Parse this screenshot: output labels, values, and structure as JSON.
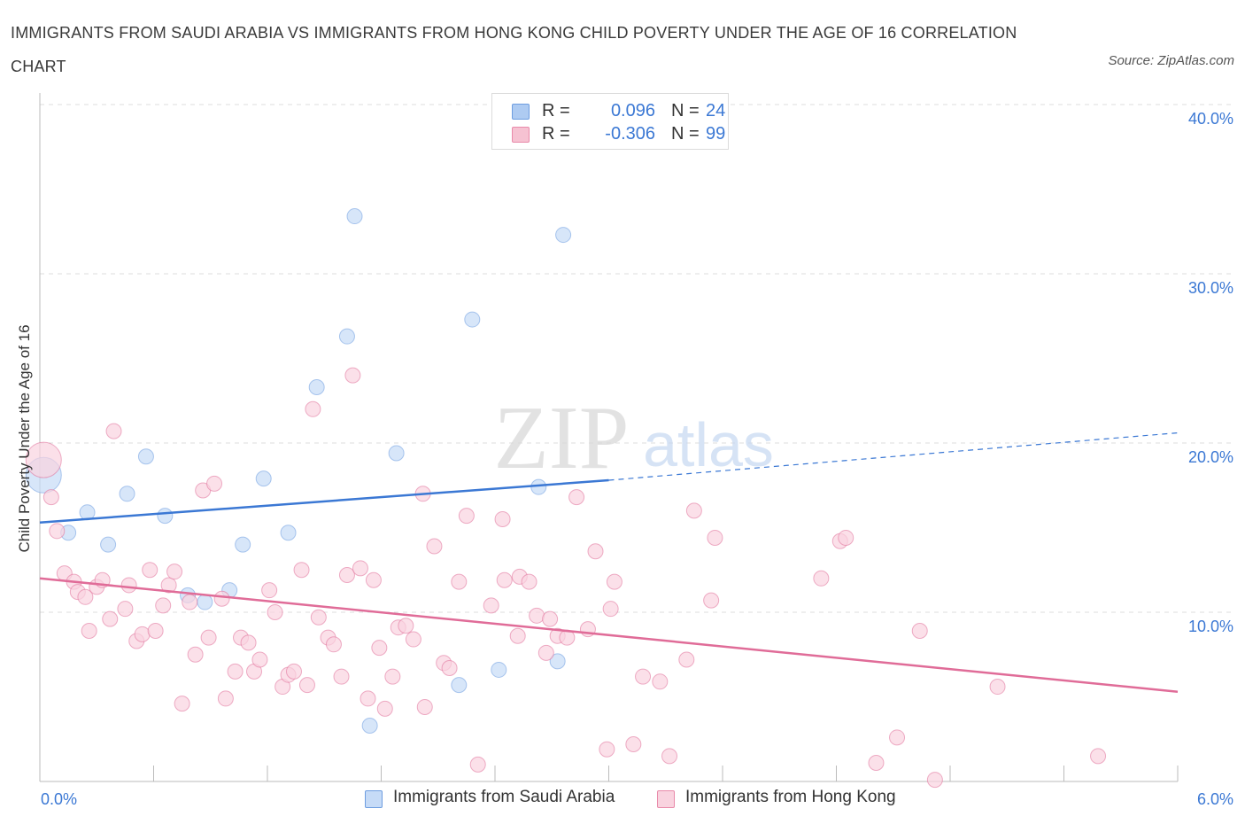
{
  "header": {
    "title": "IMMIGRANTS FROM SAUDI ARABIA VS IMMIGRANTS FROM HONG KONG CHILD POVERTY UNDER THE AGE OF 16 CORRELATION CHART",
    "source": "Source: ZipAtlas.com"
  },
  "watermark": {
    "zip": "ZIP",
    "atlas": "atlas"
  },
  "legend_top": {
    "rows": [
      {
        "r_label": "R =",
        "r_value": "0.096",
        "n_label": "N =",
        "n_value": "24",
        "color": "#aecbf2",
        "border": "#6d9de0"
      },
      {
        "r_label": "R =",
        "r_value": "-0.306",
        "n_label": "N =",
        "n_value": "99",
        "color": "#f6c2d2",
        "border": "#e98aaa"
      }
    ]
  },
  "legend_bottom": [
    {
      "label": "Immigrants from Saudi Arabia",
      "color": "#c6dbf7",
      "border": "#6d9de0"
    },
    {
      "label": "Immigrants from Hong Kong",
      "color": "#f9d3df",
      "border": "#e98aaa"
    }
  ],
  "chart_data": {
    "type": "scatter",
    "title": "IMMIGRANTS FROM SAUDI ARABIA VS IMMIGRANTS FROM HONG KONG CHILD POVERTY UNDER THE AGE OF 16 CORRELATION CHART",
    "xlabel": "",
    "ylabel": "Child Poverty Under the Age of 16",
    "xlim": [
      0,
      6
    ],
    "ylim": [
      0,
      40
    ],
    "x_tick_labels": [
      "0.0%",
      "6.0%"
    ],
    "y_tick_labels": [
      "10.0%",
      "20.0%",
      "30.0%",
      "40.0%"
    ],
    "y_ticks": [
      10,
      20,
      30,
      40
    ],
    "grid": "horizontal dashed",
    "legend": "bottom-center",
    "series": [
      {
        "name": "Immigrants from Saudi Arabia",
        "color": "#6d9de0",
        "fill": "#c6dbf7",
        "R": 0.096,
        "N": 24,
        "trend": {
          "x": [
            0,
            3.0
          ],
          "y": [
            15.3,
            17.8
          ],
          "extended_to": [
            6.0,
            20.6
          ]
        },
        "points": [
          {
            "x": 0.02,
            "y": 18.1,
            "big": true
          },
          {
            "x": 0.15,
            "y": 14.7
          },
          {
            "x": 0.25,
            "y": 15.9
          },
          {
            "x": 0.36,
            "y": 14.0
          },
          {
            "x": 0.46,
            "y": 17.0
          },
          {
            "x": 0.56,
            "y": 19.2
          },
          {
            "x": 0.66,
            "y": 15.7
          },
          {
            "x": 0.78,
            "y": 11.0
          },
          {
            "x": 0.87,
            "y": 10.6
          },
          {
            "x": 1.0,
            "y": 11.3
          },
          {
            "x": 1.07,
            "y": 14.0
          },
          {
            "x": 1.18,
            "y": 17.9
          },
          {
            "x": 1.31,
            "y": 14.7
          },
          {
            "x": 1.46,
            "y": 23.3
          },
          {
            "x": 1.62,
            "y": 26.3
          },
          {
            "x": 1.66,
            "y": 33.4
          },
          {
            "x": 1.74,
            "y": 3.3
          },
          {
            "x": 1.88,
            "y": 19.4
          },
          {
            "x": 2.21,
            "y": 5.7
          },
          {
            "x": 2.28,
            "y": 27.3
          },
          {
            "x": 2.42,
            "y": 6.6
          },
          {
            "x": 2.63,
            "y": 17.4
          },
          {
            "x": 2.73,
            "y": 7.1
          },
          {
            "x": 2.76,
            "y": 32.3
          }
        ]
      },
      {
        "name": "Immigrants from Hong Kong",
        "color": "#e07099",
        "fill": "#f9d3df",
        "R": -0.306,
        "N": 99,
        "trend": {
          "x": [
            0,
            6.0
          ],
          "y": [
            12.0,
            5.3
          ]
        },
        "points": [
          {
            "x": 0.02,
            "y": 19.0,
            "big": true
          },
          {
            "x": 0.06,
            "y": 16.8
          },
          {
            "x": 0.09,
            "y": 14.8
          },
          {
            "x": 0.13,
            "y": 12.3
          },
          {
            "x": 0.18,
            "y": 11.8
          },
          {
            "x": 0.2,
            "y": 11.2
          },
          {
            "x": 0.24,
            "y": 10.9
          },
          {
            "x": 0.26,
            "y": 8.9
          },
          {
            "x": 0.3,
            "y": 11.5
          },
          {
            "x": 0.33,
            "y": 11.9
          },
          {
            "x": 0.37,
            "y": 9.6
          },
          {
            "x": 0.39,
            "y": 20.7
          },
          {
            "x": 0.45,
            "y": 10.2
          },
          {
            "x": 0.47,
            "y": 11.6
          },
          {
            "x": 0.51,
            "y": 8.3
          },
          {
            "x": 0.54,
            "y": 8.7
          },
          {
            "x": 0.58,
            "y": 12.5
          },
          {
            "x": 0.61,
            "y": 8.9
          },
          {
            "x": 0.65,
            "y": 10.4
          },
          {
            "x": 0.68,
            "y": 11.6
          },
          {
            "x": 0.71,
            "y": 12.4
          },
          {
            "x": 0.75,
            "y": 4.6
          },
          {
            "x": 0.79,
            "y": 10.6
          },
          {
            "x": 0.82,
            "y": 7.5
          },
          {
            "x": 0.86,
            "y": 17.2
          },
          {
            "x": 0.89,
            "y": 8.5
          },
          {
            "x": 0.92,
            "y": 17.6
          },
          {
            "x": 0.96,
            "y": 10.8
          },
          {
            "x": 0.98,
            "y": 4.9
          },
          {
            "x": 1.03,
            "y": 6.5
          },
          {
            "x": 1.06,
            "y": 8.5
          },
          {
            "x": 1.1,
            "y": 8.2
          },
          {
            "x": 1.13,
            "y": 6.5
          },
          {
            "x": 1.16,
            "y": 7.2
          },
          {
            "x": 1.21,
            "y": 11.3
          },
          {
            "x": 1.24,
            "y": 10.0
          },
          {
            "x": 1.28,
            "y": 5.6
          },
          {
            "x": 1.31,
            "y": 6.3
          },
          {
            "x": 1.34,
            "y": 6.5
          },
          {
            "x": 1.38,
            "y": 12.5
          },
          {
            "x": 1.41,
            "y": 5.7
          },
          {
            "x": 1.44,
            "y": 22.0
          },
          {
            "x": 1.47,
            "y": 9.7
          },
          {
            "x": 1.52,
            "y": 8.5
          },
          {
            "x": 1.55,
            "y": 8.1
          },
          {
            "x": 1.59,
            "y": 6.2
          },
          {
            "x": 1.62,
            "y": 12.2
          },
          {
            "x": 1.65,
            "y": 24.0
          },
          {
            "x": 1.69,
            "y": 12.6
          },
          {
            "x": 1.73,
            "y": 4.9
          },
          {
            "x": 1.76,
            "y": 11.9
          },
          {
            "x": 1.79,
            "y": 7.9
          },
          {
            "x": 1.82,
            "y": 4.3
          },
          {
            "x": 1.86,
            "y": 6.2
          },
          {
            "x": 1.89,
            "y": 9.1
          },
          {
            "x": 1.93,
            "y": 9.2
          },
          {
            "x": 1.97,
            "y": 8.4
          },
          {
            "x": 2.02,
            "y": 17.0
          },
          {
            "x": 2.03,
            "y": 4.4
          },
          {
            "x": 2.08,
            "y": 13.9
          },
          {
            "x": 2.13,
            "y": 7.0
          },
          {
            "x": 2.16,
            "y": 6.7
          },
          {
            "x": 2.21,
            "y": 11.8
          },
          {
            "x": 2.25,
            "y": 15.7
          },
          {
            "x": 2.31,
            "y": 1.0
          },
          {
            "x": 2.38,
            "y": 10.4
          },
          {
            "x": 2.44,
            "y": 15.5
          },
          {
            "x": 2.45,
            "y": 11.9
          },
          {
            "x": 2.52,
            "y": 8.6
          },
          {
            "x": 2.53,
            "y": 12.1
          },
          {
            "x": 2.58,
            "y": 11.8
          },
          {
            "x": 2.62,
            "y": 9.8
          },
          {
            "x": 2.67,
            "y": 7.6
          },
          {
            "x": 2.69,
            "y": 9.6
          },
          {
            "x": 2.73,
            "y": 8.6
          },
          {
            "x": 2.78,
            "y": 8.5
          },
          {
            "x": 2.83,
            "y": 16.8
          },
          {
            "x": 2.89,
            "y": 9.0
          },
          {
            "x": 2.93,
            "y": 13.6
          },
          {
            "x": 2.99,
            "y": 1.9
          },
          {
            "x": 3.01,
            "y": 10.2
          },
          {
            "x": 3.03,
            "y": 11.8
          },
          {
            "x": 3.13,
            "y": 2.2
          },
          {
            "x": 3.18,
            "y": 6.2
          },
          {
            "x": 3.27,
            "y": 5.9
          },
          {
            "x": 3.32,
            "y": 1.5
          },
          {
            "x": 3.41,
            "y": 7.2
          },
          {
            "x": 3.45,
            "y": 16.0
          },
          {
            "x": 3.54,
            "y": 10.7
          },
          {
            "x": 3.56,
            "y": 14.4
          },
          {
            "x": 4.12,
            "y": 12.0
          },
          {
            "x": 4.22,
            "y": 14.2
          },
          {
            "x": 4.25,
            "y": 14.4
          },
          {
            "x": 4.41,
            "y": 1.1
          },
          {
            "x": 4.52,
            "y": 2.6
          },
          {
            "x": 4.64,
            "y": 8.9
          },
          {
            "x": 4.72,
            "y": 0.1
          },
          {
            "x": 5.05,
            "y": 5.6
          },
          {
            "x": 5.58,
            "y": 1.5
          }
        ]
      }
    ]
  }
}
